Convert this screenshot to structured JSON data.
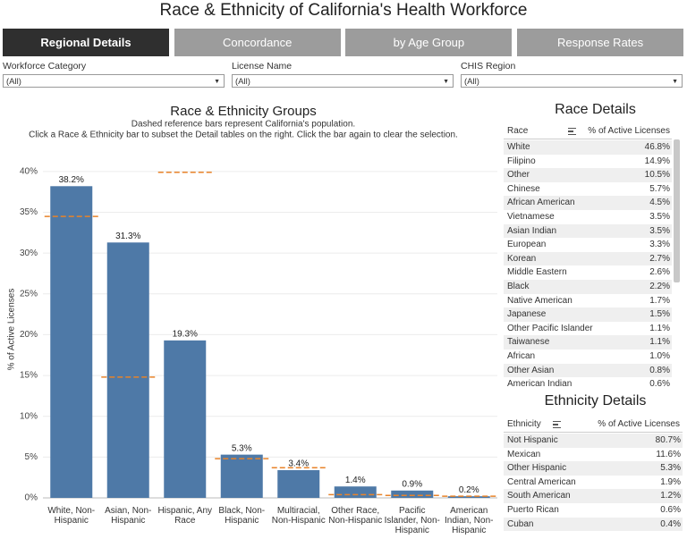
{
  "header": {
    "title": "Race & Ethnicity of California's Health Workforce"
  },
  "tabs": [
    "Regional Details",
    "Concordance",
    "by Age Group",
    "Response Rates"
  ],
  "filters": [
    {
      "label": "Workforce Category",
      "value": "(All)"
    },
    {
      "label": "License Name",
      "value": "(All)"
    },
    {
      "label": "CHIS Region",
      "value": "(All)"
    }
  ],
  "chart_data": {
    "type": "bar",
    "title": "Race & Ethnicity Groups",
    "subtitle": [
      "Dashed reference bars represent California's population.",
      "Click a Race & Ethnicity bar to subset the Detail tables on the right. Click the bar again to clear the selection."
    ],
    "y_label": "% of Active Licenses",
    "categories": [
      "White, Non-Hispanic",
      "Asian, Non-Hispanic",
      "Hispanic, Any Race",
      "Black, Non-Hispanic",
      "Multiracial, Non-Hispanic",
      "Other Race, Non-Hispanic",
      "Pacific Islander, Non-Hispanic",
      "American Indian, Non-Hispanic"
    ],
    "values": [
      38.2,
      31.3,
      19.3,
      5.3,
      3.4,
      1.4,
      0.9,
      0.2
    ],
    "value_labels": [
      "38.2%",
      "31.3%",
      "19.3%",
      "5.3%",
      "3.4%",
      "1.4%",
      "0.9%",
      "0.2%"
    ],
    "color": "#4e79a7",
    "reference_values": [
      34.5,
      14.8,
      39.9,
      4.8,
      3.7,
      0.4,
      0.3,
      0.2
    ],
    "reference_color": "#e8832a",
    "ylim": [
      0,
      41.3
    ],
    "yticks": [
      {
        "value": 0,
        "label": "0%"
      },
      {
        "value": 5,
        "label": "5%"
      },
      {
        "value": 10,
        "label": "10%"
      },
      {
        "value": 15,
        "label": "15%"
      },
      {
        "value": 20,
        "label": "20%"
      },
      {
        "value": 25,
        "label": "25%"
      },
      {
        "value": 30,
        "label": "30%"
      },
      {
        "value": 35,
        "label": "35%"
      },
      {
        "value": 40,
        "label": "40%"
      }
    ],
    "grid": true
  },
  "race_details": {
    "title": "Race Details",
    "columns": [
      "Race",
      "% of Active Licenses"
    ],
    "rows": [
      [
        "White",
        "46.8%"
      ],
      [
        "Filipino",
        "14.9%"
      ],
      [
        "Other",
        "10.5%"
      ],
      [
        "Chinese",
        "5.7%"
      ],
      [
        "African American",
        "4.5%"
      ],
      [
        "Vietnamese",
        "3.5%"
      ],
      [
        "Asian Indian",
        "3.5%"
      ],
      [
        "European",
        "3.3%"
      ],
      [
        "Korean",
        "2.7%"
      ],
      [
        "Middle Eastern",
        "2.6%"
      ],
      [
        "Black",
        "2.2%"
      ],
      [
        "Native American",
        "1.7%"
      ],
      [
        "Japanese",
        "1.5%"
      ],
      [
        "Other Pacific Islander",
        "1.1%"
      ],
      [
        "Taiwanese",
        "1.1%"
      ],
      [
        "African",
        "1.0%"
      ],
      [
        "Other Asian",
        "0.8%"
      ],
      [
        "American Indian",
        "0.6%"
      ]
    ]
  },
  "ethnicity_details": {
    "title": "Ethnicity Details",
    "columns": [
      "Ethnicity",
      "% of Active Licenses"
    ],
    "rows": [
      [
        "Not Hispanic",
        "80.7%"
      ],
      [
        "Mexican",
        "11.6%"
      ],
      [
        "Other Hispanic",
        "5.3%"
      ],
      [
        "Central American",
        "1.9%"
      ],
      [
        "South American",
        "1.2%"
      ],
      [
        "Puerto Rican",
        "0.6%"
      ],
      [
        "Cuban",
        "0.4%"
      ]
    ]
  }
}
